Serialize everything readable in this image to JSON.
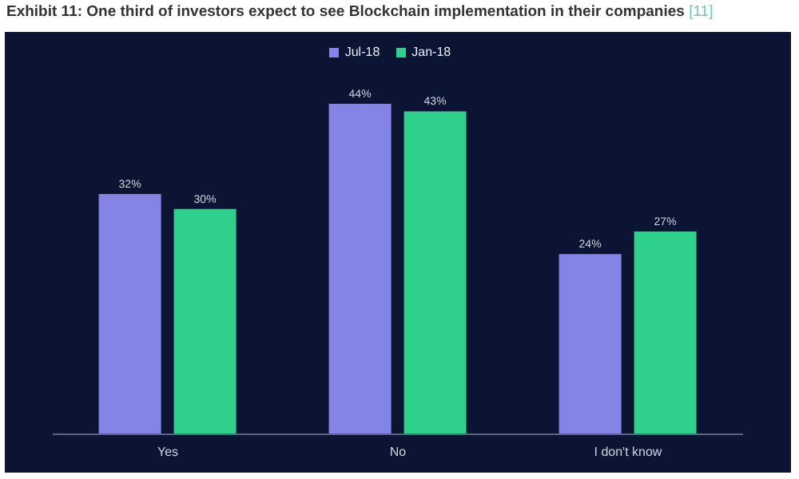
{
  "chart_data": {
    "type": "bar",
    "title": "Exhibit 11: One third of investors expect to see Blockchain implementation in their companies",
    "annotations": [
      "[11]"
    ],
    "categories": [
      "Yes",
      "No",
      "I don't know"
    ],
    "series": [
      {
        "name": "Jul-18",
        "color": "#8484e6",
        "values": [
          32,
          44,
          24
        ],
        "value_labels": [
          "32%",
          "44%",
          "24%"
        ]
      },
      {
        "name": "Jan-18",
        "color": "#2fcf8c",
        "values": [
          30,
          43,
          27
        ],
        "value_labels": [
          "30%",
          "43%",
          "27%"
        ]
      }
    ],
    "legend": "top",
    "grid": false
  }
}
